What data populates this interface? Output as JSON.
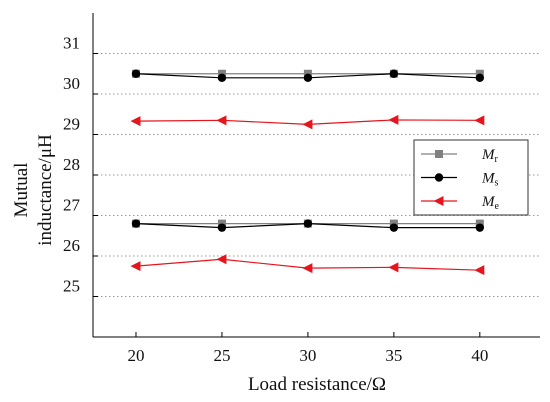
{
  "chart_data": {
    "type": "line",
    "xlabel": "Load resistance/Ω",
    "ylabel_lines": [
      "Mutual",
      "inductance/μH"
    ],
    "x": [
      20,
      25,
      30,
      35,
      40
    ],
    "xlim": [
      17.5,
      43.5
    ],
    "ylim": [
      24.0,
      32.0
    ],
    "x_ticks": [
      "20",
      "25",
      "30",
      "35",
      "40"
    ],
    "y_ticks": [
      "31",
      "30",
      "29",
      "28",
      "27",
      "26",
      "25"
    ],
    "y_tick_values": [
      31,
      30,
      29,
      28,
      27,
      26,
      25
    ],
    "grid": {
      "horizontal": true,
      "style": "dotted",
      "values": [
        31,
        30,
        29,
        28,
        27,
        26,
        25
      ]
    },
    "legend_position": "right",
    "series": [
      {
        "name": "Mr",
        "name_main": "M",
        "name_sub": "r",
        "color": "#808080",
        "marker": "square",
        "groups": [
          [
            30.5,
            30.5,
            30.5,
            30.5,
            30.5
          ],
          [
            26.8,
            26.8,
            26.8,
            26.8,
            26.8
          ]
        ]
      },
      {
        "name": "Ms",
        "name_main": "M",
        "name_sub": "s",
        "color": "#000000",
        "marker": "circle",
        "groups": [
          [
            30.5,
            30.4,
            30.4,
            30.5,
            30.4
          ],
          [
            26.8,
            26.7,
            26.8,
            26.7,
            26.7
          ]
        ]
      },
      {
        "name": "Me",
        "name_main": "M",
        "name_sub": "e",
        "color": "#e8141c",
        "marker": "triangle-left",
        "groups": [
          [
            29.33,
            29.35,
            29.25,
            29.36,
            29.35
          ],
          [
            25.75,
            25.92,
            25.7,
            25.72,
            25.65
          ]
        ]
      }
    ]
  }
}
